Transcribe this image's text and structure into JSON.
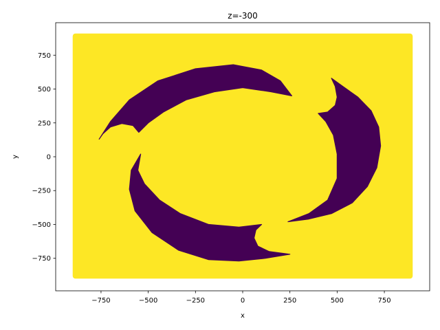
{
  "chart_data": {
    "type": "scatter",
    "title": "z=-300",
    "xlabel": "x",
    "ylabel": "y",
    "xlim": [
      -990,
      990
    ],
    "ylim": [
      -990,
      990
    ],
    "grid": false,
    "legend": "none",
    "x_ticks": [
      {
        "value": -750,
        "label": "−750"
      },
      {
        "value": -500,
        "label": "−500"
      },
      {
        "value": -250,
        "label": "−250"
      },
      {
        "value": 0,
        "label": "0"
      },
      {
        "value": 250,
        "label": "250"
      },
      {
        "value": 500,
        "label": "500"
      },
      {
        "value": 750,
        "label": "750"
      }
    ],
    "y_ticks": [
      {
        "value": -750,
        "label": "−750"
      },
      {
        "value": -500,
        "label": "−500"
      },
      {
        "value": -250,
        "label": "−250"
      },
      {
        "value": 0,
        "label": "0"
      },
      {
        "value": 250,
        "label": "250"
      },
      {
        "value": 500,
        "label": "500"
      },
      {
        "value": 750,
        "label": "750"
      }
    ],
    "colors": {
      "background_class": "#fde725",
      "region_class": "#440154"
    },
    "domain": {
      "x": [
        -900,
        900
      ],
      "y": [
        -900,
        910
      ]
    },
    "regions": [
      {
        "name": "top-left-crescent",
        "outline": [
          [
            -760,
            130
          ],
          [
            -700,
            260
          ],
          [
            -600,
            420
          ],
          [
            -450,
            560
          ],
          [
            -250,
            650
          ],
          [
            -50,
            680
          ],
          [
            100,
            640
          ],
          [
            200,
            560
          ],
          [
            260,
            450
          ],
          [
            150,
            480
          ],
          [
            0,
            510
          ],
          [
            -150,
            480
          ],
          [
            -300,
            420
          ],
          [
            -420,
            330
          ],
          [
            -500,
            250
          ],
          [
            -550,
            180
          ],
          [
            -580,
            230
          ],
          [
            -640,
            245
          ],
          [
            -700,
            220
          ],
          [
            -740,
            170
          ]
        ]
      },
      {
        "name": "right-crescent",
        "outline": [
          [
            470,
            580
          ],
          [
            530,
            520
          ],
          [
            610,
            440
          ],
          [
            680,
            340
          ],
          [
            720,
            220
          ],
          [
            730,
            80
          ],
          [
            710,
            -80
          ],
          [
            660,
            -220
          ],
          [
            580,
            -340
          ],
          [
            470,
            -420
          ],
          [
            350,
            -460
          ],
          [
            240,
            -480
          ],
          [
            350,
            -420
          ],
          [
            450,
            -320
          ],
          [
            500,
            -160
          ],
          [
            500,
            20
          ],
          [
            480,
            160
          ],
          [
            440,
            260
          ],
          [
            400,
            320
          ],
          [
            450,
            330
          ],
          [
            490,
            380
          ],
          [
            500,
            440
          ],
          [
            490,
            520
          ]
        ]
      },
      {
        "name": "bottom-crescent",
        "outline": [
          [
            -540,
            20
          ],
          [
            -590,
            -100
          ],
          [
            -600,
            -240
          ],
          [
            -570,
            -400
          ],
          [
            -480,
            -560
          ],
          [
            -340,
            -690
          ],
          [
            -180,
            -760
          ],
          [
            -20,
            -770
          ],
          [
            120,
            -750
          ],
          [
            250,
            -720
          ],
          [
            140,
            -700
          ],
          [
            80,
            -660
          ],
          [
            60,
            -600
          ],
          [
            70,
            -540
          ],
          [
            100,
            -500
          ],
          [
            -20,
            -520
          ],
          [
            -180,
            -500
          ],
          [
            -330,
            -420
          ],
          [
            -440,
            -320
          ],
          [
            -520,
            -200
          ],
          [
            -555,
            -100
          ]
        ]
      }
    ]
  }
}
